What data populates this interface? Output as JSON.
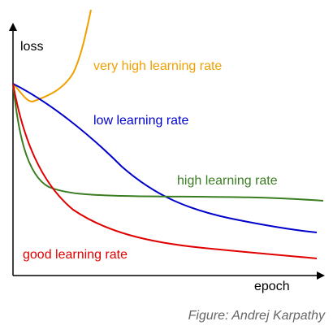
{
  "y_axis_label": "loss",
  "x_axis_label": "epoch",
  "curves": [
    {
      "label": "very high learning rate"
    },
    {
      "label": "low learning rate"
    },
    {
      "label": "high learning rate"
    },
    {
      "label": "good learning rate"
    }
  ],
  "caption": "Figure: Andrej Karpathy"
}
